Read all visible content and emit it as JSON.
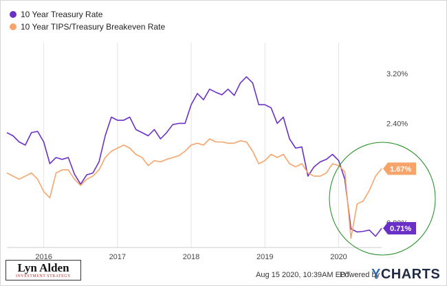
{
  "legend": [
    {
      "label": "10 Year Treasury Rate",
      "color": "#6a2fc6"
    },
    {
      "label": "10 Year TIPS/Treasury Breakeven Rate",
      "color": "#f7a46b"
    }
  ],
  "footer": {
    "timestamp": "Aug 15 2020, 10:39AM EDT.",
    "powered_by": "Powered by",
    "brand_y": "Y",
    "brand_rest": "CHARTS"
  },
  "logo": {
    "name": "Lyn Alden",
    "subtitle": "INVESTMENT STRATEGY"
  },
  "chart_data": {
    "type": "line",
    "xlim": [
      "2015-07",
      "2020-08"
    ],
    "ylim": [
      0.4,
      3.7
    ],
    "x_ticks": [
      "2016",
      "2017",
      "2018",
      "2019",
      "2020"
    ],
    "y_ticks": [
      "0.80%",
      "2.40%",
      "3.20%"
    ],
    "grid": "vertical at years",
    "series": [
      {
        "name": "10 Year Treasury Rate",
        "color": "#6a2fc6",
        "last_value_label": "0.71%",
        "points": [
          [
            "2015-07",
            2.25
          ],
          [
            "2015-08",
            2.2
          ],
          [
            "2015-09",
            2.1
          ],
          [
            "2015-10",
            2.05
          ],
          [
            "2015-11",
            2.25
          ],
          [
            "2015-12",
            2.27
          ],
          [
            "2016-01",
            2.1
          ],
          [
            "2016-02",
            1.75
          ],
          [
            "2016-03",
            1.85
          ],
          [
            "2016-04",
            1.82
          ],
          [
            "2016-05",
            1.85
          ],
          [
            "2016-06",
            1.58
          ],
          [
            "2016-07",
            1.42
          ],
          [
            "2016-08",
            1.57
          ],
          [
            "2016-09",
            1.6
          ],
          [
            "2016-10",
            1.78
          ],
          [
            "2016-11",
            2.2
          ],
          [
            "2016-12",
            2.5
          ],
          [
            "2017-01",
            2.45
          ],
          [
            "2017-02",
            2.45
          ],
          [
            "2017-03",
            2.5
          ],
          [
            "2017-04",
            2.3
          ],
          [
            "2017-05",
            2.25
          ],
          [
            "2017-06",
            2.2
          ],
          [
            "2017-07",
            2.3
          ],
          [
            "2017-08",
            2.15
          ],
          [
            "2017-09",
            2.25
          ],
          [
            "2017-10",
            2.38
          ],
          [
            "2017-11",
            2.4
          ],
          [
            "2017-12",
            2.4
          ],
          [
            "2018-01",
            2.7
          ],
          [
            "2018-02",
            2.88
          ],
          [
            "2018-03",
            2.78
          ],
          [
            "2018-04",
            2.95
          ],
          [
            "2018-05",
            2.9
          ],
          [
            "2018-06",
            2.86
          ],
          [
            "2018-07",
            2.95
          ],
          [
            "2018-08",
            2.85
          ],
          [
            "2018-09",
            3.05
          ],
          [
            "2018-10",
            3.15
          ],
          [
            "2018-11",
            3.05
          ],
          [
            "2018-12",
            2.7
          ],
          [
            "2019-01",
            2.7
          ],
          [
            "2019-02",
            2.65
          ],
          [
            "2019-03",
            2.4
          ],
          [
            "2019-04",
            2.5
          ],
          [
            "2019-05",
            2.15
          ],
          [
            "2019-06",
            2.0
          ],
          [
            "2019-07",
            2.02
          ],
          [
            "2019-08",
            1.55
          ],
          [
            "2019-09",
            1.7
          ],
          [
            "2019-10",
            1.78
          ],
          [
            "2019-11",
            1.82
          ],
          [
            "2019-12",
            1.9
          ],
          [
            "2020-01",
            1.8
          ],
          [
            "2020-02",
            1.5
          ],
          [
            "2020-03",
            0.7
          ],
          [
            "2020-04",
            0.65
          ],
          [
            "2020-05",
            0.66
          ],
          [
            "2020-06",
            0.68
          ],
          [
            "2020-07",
            0.58
          ],
          [
            "2020-08",
            0.71
          ]
        ]
      },
      {
        "name": "10 Year TIPS/Treasury Breakeven Rate",
        "color": "#f7a46b",
        "last_value_label": "1.67%",
        "points": [
          [
            "2015-07",
            1.6
          ],
          [
            "2015-08",
            1.55
          ],
          [
            "2015-09",
            1.5
          ],
          [
            "2015-10",
            1.55
          ],
          [
            "2015-11",
            1.6
          ],
          [
            "2015-12",
            1.5
          ],
          [
            "2016-01",
            1.3
          ],
          [
            "2016-02",
            1.2
          ],
          [
            "2016-03",
            1.6
          ],
          [
            "2016-04",
            1.65
          ],
          [
            "2016-05",
            1.65
          ],
          [
            "2016-06",
            1.5
          ],
          [
            "2016-07",
            1.4
          ],
          [
            "2016-08",
            1.5
          ],
          [
            "2016-09",
            1.55
          ],
          [
            "2016-10",
            1.65
          ],
          [
            "2016-11",
            1.85
          ],
          [
            "2016-12",
            1.95
          ],
          [
            "2017-01",
            2.0
          ],
          [
            "2017-02",
            2.05
          ],
          [
            "2017-03",
            2.0
          ],
          [
            "2017-04",
            1.9
          ],
          [
            "2017-05",
            1.85
          ],
          [
            "2017-06",
            1.72
          ],
          [
            "2017-07",
            1.8
          ],
          [
            "2017-08",
            1.78
          ],
          [
            "2017-09",
            1.82
          ],
          [
            "2017-10",
            1.85
          ],
          [
            "2017-11",
            1.88
          ],
          [
            "2017-12",
            1.95
          ],
          [
            "2018-01",
            2.05
          ],
          [
            "2018-02",
            2.08
          ],
          [
            "2018-03",
            2.05
          ],
          [
            "2018-04",
            2.15
          ],
          [
            "2018-05",
            2.1
          ],
          [
            "2018-06",
            2.1
          ],
          [
            "2018-07",
            2.08
          ],
          [
            "2018-08",
            2.08
          ],
          [
            "2018-09",
            2.12
          ],
          [
            "2018-10",
            2.1
          ],
          [
            "2018-11",
            1.95
          ],
          [
            "2018-12",
            1.75
          ],
          [
            "2019-01",
            1.8
          ],
          [
            "2019-02",
            1.9
          ],
          [
            "2019-03",
            1.85
          ],
          [
            "2019-04",
            1.9
          ],
          [
            "2019-05",
            1.75
          ],
          [
            "2019-06",
            1.7
          ],
          [
            "2019-07",
            1.75
          ],
          [
            "2019-08",
            1.6
          ],
          [
            "2019-09",
            1.55
          ],
          [
            "2019-10",
            1.55
          ],
          [
            "2019-11",
            1.6
          ],
          [
            "2019-12",
            1.75
          ],
          [
            "2020-01",
            1.72
          ],
          [
            "2020-02",
            1.62
          ],
          [
            "2020-03",
            0.55
          ],
          [
            "2020-04",
            1.1
          ],
          [
            "2020-05",
            1.15
          ],
          [
            "2020-06",
            1.32
          ],
          [
            "2020-07",
            1.55
          ],
          [
            "2020-08",
            1.67
          ]
        ]
      }
    ]
  }
}
